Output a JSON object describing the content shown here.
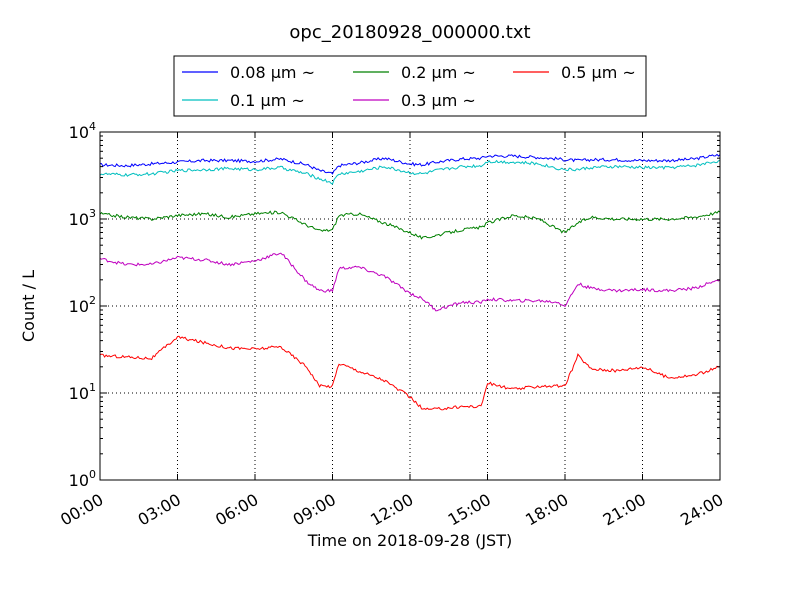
{
  "chart_data": {
    "type": "line",
    "title": "opc_20180928_000000.txt",
    "xlabel": "Time on 2018-09-28 (JST)",
    "ylabel": "Count / L",
    "y_scale": "log",
    "ylim": [
      1,
      10000
    ],
    "y_ticks": [
      {
        "value": 1,
        "base": "10",
        "exp": "0"
      },
      {
        "value": 10,
        "base": "10",
        "exp": "1"
      },
      {
        "value": 100,
        "base": "10",
        "exp": "2"
      },
      {
        "value": 1000,
        "base": "10",
        "exp": "3"
      },
      {
        "value": 10000,
        "base": "10",
        "exp": "4"
      }
    ],
    "xlim": [
      "00:00",
      "24:00"
    ],
    "x_ticks": [
      "00:00",
      "03:00",
      "06:00",
      "09:00",
      "12:00",
      "15:00",
      "18:00",
      "21:00",
      "24:00"
    ],
    "grid": true,
    "legend_position": "top-center",
    "x": [
      "00:00",
      "01:00",
      "02:00",
      "03:00",
      "04:00",
      "05:00",
      "06:00",
      "07:00",
      "08:00",
      "08:30",
      "09:00",
      "09:15",
      "10:00",
      "11:00",
      "12:00",
      "12:30",
      "13:00",
      "14:00",
      "14:45",
      "15:00",
      "16:00",
      "17:00",
      "17:45",
      "18:00",
      "18:30",
      "19:00",
      "20:00",
      "21:00",
      "22:00",
      "23:00",
      "24:00"
    ],
    "series": [
      {
        "name": "0.08 μm ~",
        "color": "#0000ff",
        "values": [
          4200,
          4100,
          4300,
          4500,
          4700,
          4700,
          4600,
          4900,
          4200,
          3600,
          3300,
          4100,
          4400,
          5000,
          4300,
          4200,
          4500,
          4900,
          5000,
          5300,
          5300,
          5100,
          4900,
          4800,
          4700,
          4800,
          4800,
          4700,
          4700,
          4900,
          5500
        ]
      },
      {
        "name": "0.1 μm ~",
        "color": "#00bfbf",
        "values": [
          3300,
          3200,
          3300,
          3600,
          3700,
          3800,
          3700,
          3900,
          3300,
          2900,
          2600,
          3300,
          3500,
          4000,
          3400,
          3300,
          3600,
          4000,
          4100,
          4600,
          4500,
          4300,
          3800,
          3700,
          3700,
          3900,
          4000,
          3900,
          3900,
          4100,
          4700
        ]
      },
      {
        "name": "0.2 μm ~",
        "color": "#008000",
        "values": [
          1150,
          1050,
          1000,
          1100,
          1150,
          1050,
          1150,
          1200,
          850,
          730,
          750,
          1100,
          1150,
          900,
          700,
          600,
          650,
          750,
          800,
          900,
          1100,
          1000,
          750,
          700,
          900,
          1050,
          1000,
          1000,
          1000,
          1050,
          1200
        ]
      },
      {
        "name": "0.3 μm ~",
        "color": "#bf00bf",
        "values": [
          350,
          300,
          300,
          360,
          340,
          300,
          330,
          410,
          190,
          150,
          150,
          270,
          280,
          220,
          140,
          120,
          90,
          110,
          110,
          120,
          115,
          115,
          110,
          100,
          180,
          160,
          150,
          155,
          150,
          160,
          200
        ]
      },
      {
        "name": "0.5 μm ~",
        "color": "#ff0000",
        "values": [
          27,
          26,
          25,
          44,
          38,
          33,
          32,
          34,
          20,
          12,
          12,
          22,
          18,
          14,
          9,
          6.5,
          6.5,
          7,
          7,
          13,
          11,
          12,
          12,
          12,
          27,
          19,
          18,
          20,
          15,
          16,
          20
        ]
      }
    ]
  }
}
